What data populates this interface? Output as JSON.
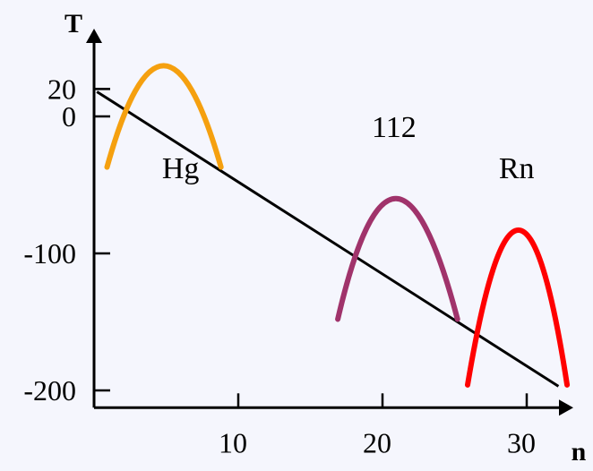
{
  "chart_data": {
    "type": "line",
    "xlabel": "n",
    "ylabel": "T",
    "xlim": [
      0,
      33
    ],
    "ylim": [
      -210,
      30
    ],
    "x_ticks": [
      {
        "value": 10,
        "label": "10"
      },
      {
        "value": 20,
        "label": "20"
      },
      {
        "value": 30,
        "label": "30"
      }
    ],
    "y_ticks": [
      {
        "value": 20,
        "label": "20"
      },
      {
        "value": 0,
        "label": "0"
      },
      {
        "value": -100,
        "label": "-100"
      },
      {
        "value": -200,
        "label": "-200"
      }
    ],
    "trend_line": {
      "x": [
        0.2,
        32.2
      ],
      "y": [
        18,
        -197
      ],
      "color": "#000000"
    },
    "series": [
      {
        "name": "Hg",
        "color": "#f5a00f",
        "peak": {
          "x": 4.8,
          "y": 37
        },
        "base": {
          "x": [
            0.9,
            8.8
          ],
          "y": [
            -37,
            -37
          ]
        },
        "label_pos": {
          "x": 6,
          "y": -45
        }
      },
      {
        "name": "112",
        "color": "#a0336b",
        "peak": {
          "x": 20.8,
          "y": -60
        },
        "base": {
          "x": [
            16.9,
            25.2
          ],
          "y": [
            -148,
            -148
          ]
        },
        "label_pos": {
          "x": 20.8,
          "y": -15
        }
      },
      {
        "name": "Rn",
        "color": "#ff0000",
        "peak": {
          "x": 29.5,
          "y": -83
        },
        "base": {
          "x": [
            25.9,
            32.8
          ],
          "y": [
            -196,
            -196
          ]
        },
        "label_pos": {
          "x": 29.3,
          "y": -45
        }
      }
    ]
  }
}
